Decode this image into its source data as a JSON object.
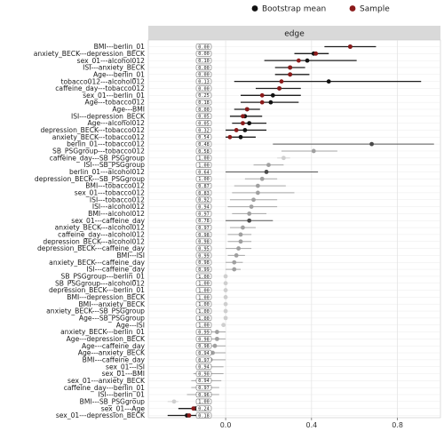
{
  "chart_data": {
    "type": "forest",
    "facet_label": "edge",
    "legend": [
      {
        "label": "Bootstrap mean",
        "color": "#111111"
      },
      {
        "label": "Sample",
        "color": "#8b1a1a"
      }
    ],
    "xticks": [
      "0.0",
      "0.4",
      "0.8"
    ],
    "xtick_values": [
      0.0,
      0.4,
      0.8
    ],
    "xlim": [
      -0.36,
      1.0
    ],
    "rows": [
      {
        "edge": "BMI---berlin_01",
        "prop": "0.00",
        "lo": 0.46,
        "hi": 0.7,
        "boot": 0.58,
        "sample": 0.58,
        "shade": 0
      },
      {
        "edge": "anxiety_BECK---depression_BECK",
        "prop": "0.00",
        "lo": 0.32,
        "hi": 0.48,
        "boot": 0.41,
        "sample": 0.42,
        "shade": 0
      },
      {
        "edge": "sex_01---alcohol012",
        "prop": "0.10",
        "lo": 0.18,
        "hi": 0.61,
        "boot": 0.38,
        "sample": 0.34,
        "shade": 0
      },
      {
        "edge": "ISI---anxiety_BECK",
        "prop": "0.00",
        "lo": 0.23,
        "hi": 0.37,
        "boot": 0.3,
        "sample": 0.3,
        "shade": 0
      },
      {
        "edge": "Age---berlin_01",
        "prop": "0.00",
        "lo": 0.23,
        "hi": 0.39,
        "boot": 0.3,
        "sample": 0.3,
        "shade": 0
      },
      {
        "edge": "tobacco012---alcohol012",
        "prop": "0.13",
        "lo": 0.04,
        "hi": 0.91,
        "boot": 0.48,
        "sample": 0.26,
        "shade": 0
      },
      {
        "edge": "caffeine_day---tobacco012",
        "prop": "0.00",
        "lo": 0.14,
        "hi": 0.35,
        "boot": 0.25,
        "sample": 0.25,
        "shade": 0
      },
      {
        "edge": "sex_01---berlin_01",
        "prop": "0.25",
        "lo": 0.07,
        "hi": 0.35,
        "boot": 0.22,
        "sample": 0.17,
        "shade": 0
      },
      {
        "edge": "Age---tobacco012",
        "prop": "0.18",
        "lo": 0.07,
        "hi": 0.34,
        "boot": 0.21,
        "sample": 0.17,
        "shade": 0
      },
      {
        "edge": "Age---BMI",
        "prop": "0.00",
        "lo": 0.04,
        "hi": 0.16,
        "boot": 0.1,
        "sample": 0.1,
        "shade": 0
      },
      {
        "edge": "ISI---depression_BECK",
        "prop": "0.05",
        "lo": 0.02,
        "hi": 0.17,
        "boot": 0.09,
        "sample": 0.08,
        "shade": 0
      },
      {
        "edge": "Age---alcohol012",
        "prop": "0.05",
        "lo": 0.03,
        "hi": 0.19,
        "boot": 0.11,
        "sample": 0.08,
        "shade": 0
      },
      {
        "edge": "depression_BECK---tobacco012",
        "prop": "0.32",
        "lo": 0.0,
        "hi": 0.19,
        "boot": 0.09,
        "sample": 0.05,
        "shade": 0
      },
      {
        "edge": "anxiety_BECK---tobacco012",
        "prop": "0.54",
        "lo": 0.0,
        "hi": 0.14,
        "boot": 0.07,
        "sample": 0.02,
        "shade": 0
      },
      {
        "edge": "berlin_01---tobacco012",
        "prop": "0.48",
        "lo": 0.22,
        "hi": 0.97,
        "boot": 0.68,
        "sample": 0.0,
        "shade": 1
      },
      {
        "edge": "SB_PSGgroup---tobacco012",
        "prop": "0.58",
        "lo": 0.26,
        "hi": 0.52,
        "boot": 0.41,
        "sample": 0.0,
        "shade": 2
      },
      {
        "edge": "caffeine_day---SB_PSGgroup",
        "prop": "1.00",
        "lo": 0.24,
        "hi": 0.3,
        "boot": 0.27,
        "sample": 0.0,
        "shade": 3
      },
      {
        "edge": "ISI---SB_PSGgroup",
        "prop": "1.00",
        "lo": 0.13,
        "hi": 0.27,
        "boot": 0.2,
        "sample": 0.0,
        "shade": 2
      },
      {
        "edge": "berlin_01---alcohol012",
        "prop": "0.64",
        "lo": 0.0,
        "hi": 0.43,
        "boot": 0.19,
        "sample": 0.0,
        "shade": 1
      },
      {
        "edge": "depression_BECK---SB_PSGgroup",
        "prop": "1.00",
        "lo": 0.09,
        "hi": 0.24,
        "boot": 0.17,
        "sample": 0.0,
        "shade": 2
      },
      {
        "edge": "BMI---tobacco012",
        "prop": "0.87",
        "lo": 0.04,
        "hi": 0.28,
        "boot": 0.15,
        "sample": 0.0,
        "shade": 2
      },
      {
        "edge": "sex_01---tobacco012",
        "prop": "0.83",
        "lo": 0.03,
        "hi": 0.32,
        "boot": 0.15,
        "sample": 0.0,
        "shade": 2
      },
      {
        "edge": "ISI---tobacco012",
        "prop": "0.92",
        "lo": 0.02,
        "hi": 0.24,
        "boot": 0.13,
        "sample": 0.0,
        "shade": 2
      },
      {
        "edge": "ISI---alcohol012",
        "prop": "0.94",
        "lo": 0.01,
        "hi": 0.24,
        "boot": 0.12,
        "sample": 0.0,
        "shade": 2
      },
      {
        "edge": "BMI---alcohol012",
        "prop": "0.97",
        "lo": 0.03,
        "hi": 0.19,
        "boot": 0.11,
        "sample": 0.0,
        "shade": 2
      },
      {
        "edge": "sex_01---caffeine_day",
        "prop": "0.78",
        "lo": 0.0,
        "hi": 0.22,
        "boot": 0.11,
        "sample": 0.0,
        "shade": 1
      },
      {
        "edge": "anxiety_BECK---alcohol012",
        "prop": "0.97",
        "lo": 0.02,
        "hi": 0.14,
        "boot": 0.08,
        "sample": 0.0,
        "shade": 2
      },
      {
        "edge": "caffeine_day---alcohol012",
        "prop": "0.98",
        "lo": 0.01,
        "hi": 0.12,
        "boot": 0.07,
        "sample": 0.0,
        "shade": 2
      },
      {
        "edge": "depression_BECK---alcohol012",
        "prop": "0.98",
        "lo": 0.01,
        "hi": 0.12,
        "boot": 0.07,
        "sample": 0.0,
        "shade": 2
      },
      {
        "edge": "depression_BECK---caffeine_day",
        "prop": "0.95",
        "lo": 0.0,
        "hi": 0.12,
        "boot": 0.06,
        "sample": 0.0,
        "shade": 2
      },
      {
        "edge": "BMI---ISI",
        "prop": "0.99",
        "lo": 0.01,
        "hi": 0.09,
        "boot": 0.05,
        "sample": 0.0,
        "shade": 2
      },
      {
        "edge": "anxiety_BECK---caffeine_day",
        "prop": "0.98",
        "lo": 0.0,
        "hi": 0.08,
        "boot": 0.04,
        "sample": 0.0,
        "shade": 2
      },
      {
        "edge": "ISI---caffeine_day",
        "prop": "0.99",
        "lo": 0.0,
        "hi": 0.07,
        "boot": 0.04,
        "sample": 0.0,
        "shade": 2
      },
      {
        "edge": "SB_PSGgroup---berlin_01",
        "prop": "1.00",
        "lo": 0.0,
        "hi": 0.0,
        "boot": 0.0,
        "sample": 0.0,
        "shade": 3
      },
      {
        "edge": "SB_PSGgroup---alcohol012",
        "prop": "1.00",
        "lo": 0.0,
        "hi": 0.0,
        "boot": 0.0,
        "sample": 0.0,
        "shade": 3
      },
      {
        "edge": "depression_BECK---berlin_01",
        "prop": "1.00",
        "lo": 0.0,
        "hi": 0.0,
        "boot": 0.0,
        "sample": 0.0,
        "shade": 3
      },
      {
        "edge": "BMI---depression_BECK",
        "prop": "1.00",
        "lo": 0.0,
        "hi": 0.0,
        "boot": 0.0,
        "sample": 0.0,
        "shade": 3
      },
      {
        "edge": "BMI---anxiety_BECK",
        "prop": "1.00",
        "lo": 0.0,
        "hi": 0.0,
        "boot": 0.0,
        "sample": 0.0,
        "shade": 3
      },
      {
        "edge": "anxiety_BECK---SB_PSGgroup",
        "prop": "1.00",
        "lo": 0.0,
        "hi": 0.0,
        "boot": 0.0,
        "sample": 0.0,
        "shade": 3
      },
      {
        "edge": "Age---SB_PSGgroup",
        "prop": "1.00",
        "lo": 0.0,
        "hi": 0.0,
        "boot": 0.0,
        "sample": 0.0,
        "shade": 3
      },
      {
        "edge": "Age---ISI",
        "prop": "1.00",
        "lo": -0.02,
        "hi": 0.0,
        "boot": -0.01,
        "sample": 0.0,
        "shade": 3
      },
      {
        "edge": "anxiety_BECK---berlin_01",
        "prop": "0.99",
        "lo": -0.08,
        "hi": 0.0,
        "boot": -0.04,
        "sample": 0.0,
        "shade": 2
      },
      {
        "edge": "Age---depression_BECK",
        "prop": "0.98",
        "lo": -0.09,
        "hi": 0.0,
        "boot": -0.04,
        "sample": 0.0,
        "shade": 2
      },
      {
        "edge": "Age---caffeine_day",
        "prop": "0.98",
        "lo": -0.1,
        "hi": 0.0,
        "boot": -0.05,
        "sample": 0.0,
        "shade": 2
      },
      {
        "edge": "Age---anxiety_BECK",
        "prop": "0.94",
        "lo": -0.12,
        "hi": 0.0,
        "boot": -0.06,
        "sample": 0.0,
        "shade": 2
      },
      {
        "edge": "BMI---caffeine_day",
        "prop": "0.97",
        "lo": -0.12,
        "hi": 0.0,
        "boot": -0.07,
        "sample": 0.0,
        "shade": 2
      },
      {
        "edge": "sex_01---ISI",
        "prop": "0.94",
        "lo": -0.14,
        "hi": -0.01,
        "boot": -0.08,
        "sample": 0.0,
        "shade": 2
      },
      {
        "edge": "sex_01---BMI",
        "prop": "0.90",
        "lo": -0.15,
        "hi": -0.01,
        "boot": -0.08,
        "sample": 0.0,
        "shade": 2
      },
      {
        "edge": "sex_01---anxiety_BECK",
        "prop": "0.94",
        "lo": -0.16,
        "hi": -0.02,
        "boot": -0.09,
        "sample": 0.0,
        "shade": 2
      },
      {
        "edge": "caffeine_day---berlin_01",
        "prop": "0.97",
        "lo": -0.16,
        "hi": -0.03,
        "boot": -0.1,
        "sample": 0.0,
        "shade": 2
      },
      {
        "edge": "ISI---berlin_01",
        "prop": "0.96",
        "lo": -0.18,
        "hi": -0.03,
        "boot": -0.1,
        "sample": 0.0,
        "shade": 2
      },
      {
        "edge": "BMI---SB_PSGgroup",
        "prop": "1.00",
        "lo": -0.27,
        "hi": -0.22,
        "boot": -0.24,
        "sample": 0.0,
        "shade": 3
      },
      {
        "edge": "sex_01---Age",
        "prop": "0.24",
        "lo": -0.22,
        "hi": -0.07,
        "boot": -0.14,
        "sample": -0.15,
        "shade": 0
      },
      {
        "edge": "sex_01---depression_BECK",
        "prop": "0.18",
        "lo": -0.27,
        "hi": -0.09,
        "boot": -0.18,
        "sample": -0.17,
        "shade": 0
      }
    ]
  }
}
